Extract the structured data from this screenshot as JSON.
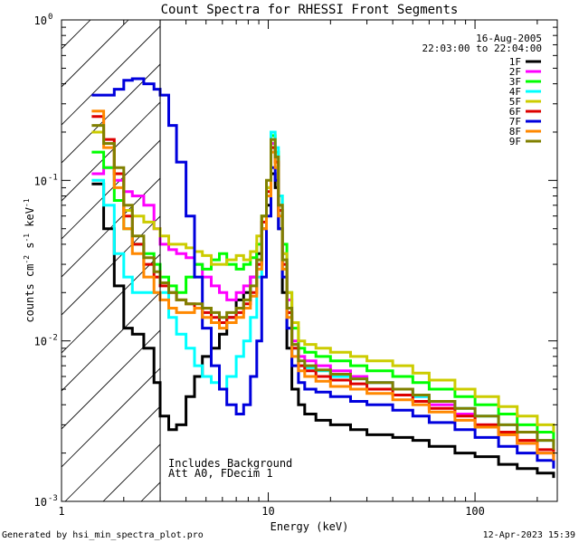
{
  "footer": {
    "generated_by": "Generated by hsi_min_spectra_plot.pro",
    "timestamp": "12-Apr-2023 15:39"
  },
  "chart_data": {
    "type": "line",
    "title": "Count Spectra for RHESSI Front Segments",
    "xlabel": "Energy (keV)",
    "ylabel_main": "counts cm",
    "ylabel_sup1": "-2",
    "ylabel_mid": " s",
    "ylabel_sup2": "-1",
    "ylabel_tail": " keV",
    "ylabel_sup3": "-1",
    "xscale": "log",
    "yscale": "log",
    "xlim": [
      1,
      250
    ],
    "ylim": [
      0.001,
      1
    ],
    "x_ticks": [
      {
        "value": 1,
        "label": "1"
      },
      {
        "value": 10,
        "label": "10"
      },
      {
        "value": 100,
        "label": "100"
      }
    ],
    "y_ticks": [
      {
        "value": 0.001,
        "base": "10",
        "exp": "-3"
      },
      {
        "value": 0.01,
        "base": "10",
        "exp": "-2"
      },
      {
        "value": 0.1,
        "base": "10",
        "exp": "-1"
      },
      {
        "value": 1,
        "base": "10",
        "exp": "0"
      }
    ],
    "date": "16-Aug-2005",
    "time_range": "22:03:00 to 22:04:00",
    "notes": [
      "Includes Background",
      "Att A0, FDecim 1"
    ],
    "excluded_region_keV": [
      1,
      3
    ],
    "series": [
      {
        "name": "1F",
        "color": "#000000",
        "x": [
          1.4,
          1.6,
          1.8,
          2.0,
          2.2,
          2.5,
          2.8,
          3.0,
          3.3,
          3.6,
          4.0,
          4.4,
          4.8,
          5.3,
          5.8,
          6.3,
          7.0,
          7.6,
          8.2,
          8.8,
          9.3,
          9.8,
          10.3,
          10.8,
          11.2,
          11.7,
          12.3,
          13.0,
          14.0,
          15.0,
          17.0,
          20.0,
          25.0,
          30.0,
          40.0,
          50.0,
          60.0,
          80.0,
          100.0,
          130.0,
          160.0,
          200.0,
          240.0
        ],
        "y": [
          0.095,
          0.05,
          0.022,
          0.012,
          0.011,
          0.009,
          0.0055,
          0.0034,
          0.0028,
          0.003,
          0.0045,
          0.006,
          0.008,
          0.009,
          0.011,
          0.014,
          0.018,
          0.02,
          0.025,
          0.035,
          0.05,
          0.07,
          0.11,
          0.09,
          0.05,
          0.02,
          0.009,
          0.005,
          0.004,
          0.0035,
          0.0032,
          0.003,
          0.0028,
          0.0026,
          0.0025,
          0.0024,
          0.0022,
          0.002,
          0.0019,
          0.0017,
          0.0016,
          0.0015,
          0.0014
        ]
      },
      {
        "name": "2F",
        "color": "#ff00ff",
        "x": [
          1.4,
          1.6,
          1.8,
          2.0,
          2.2,
          2.5,
          2.8,
          3.0,
          3.3,
          3.6,
          4.0,
          4.4,
          4.8,
          5.3,
          5.8,
          6.3,
          7.0,
          7.6,
          8.2,
          8.8,
          9.3,
          9.8,
          10.3,
          10.8,
          11.2,
          11.7,
          12.3,
          13.0,
          14.0,
          15.0,
          17.0,
          20.0,
          25.0,
          30.0,
          40.0,
          50.0,
          60.0,
          80.0,
          100.0,
          130.0,
          160.0,
          200.0,
          240.0
        ],
        "y": [
          0.11,
          0.12,
          0.1,
          0.085,
          0.08,
          0.07,
          0.05,
          0.04,
          0.037,
          0.035,
          0.033,
          0.03,
          0.025,
          0.022,
          0.02,
          0.018,
          0.02,
          0.022,
          0.025,
          0.03,
          0.05,
          0.08,
          0.17,
          0.14,
          0.07,
          0.035,
          0.018,
          0.01,
          0.008,
          0.0075,
          0.007,
          0.0065,
          0.006,
          0.0055,
          0.005,
          0.0045,
          0.004,
          0.0035,
          0.003,
          0.0026,
          0.0023,
          0.002,
          0.0018
        ]
      },
      {
        "name": "3F",
        "color": "#00ff00",
        "x": [
          1.4,
          1.6,
          1.8,
          2.0,
          2.2,
          2.5,
          2.8,
          3.0,
          3.3,
          3.6,
          4.0,
          4.4,
          4.8,
          5.3,
          5.8,
          6.3,
          7.0,
          7.6,
          8.2,
          8.8,
          9.3,
          9.8,
          10.3,
          10.8,
          11.2,
          11.7,
          12.3,
          13.0,
          14.0,
          15.0,
          17.0,
          20.0,
          25.0,
          30.0,
          40.0,
          50.0,
          60.0,
          80.0,
          100.0,
          130.0,
          160.0,
          200.0,
          240.0
        ],
        "y": [
          0.15,
          0.12,
          0.075,
          0.05,
          0.04,
          0.035,
          0.03,
          0.025,
          0.022,
          0.02,
          0.025,
          0.03,
          0.028,
          0.032,
          0.035,
          0.03,
          0.028,
          0.03,
          0.033,
          0.04,
          0.06,
          0.09,
          0.19,
          0.15,
          0.08,
          0.04,
          0.02,
          0.012,
          0.009,
          0.0085,
          0.008,
          0.0075,
          0.007,
          0.0065,
          0.006,
          0.0055,
          0.005,
          0.0045,
          0.004,
          0.0035,
          0.003,
          0.0027,
          0.0024
        ]
      },
      {
        "name": "4F",
        "color": "#00ffff",
        "x": [
          1.4,
          1.6,
          1.8,
          2.0,
          2.2,
          2.5,
          2.8,
          3.0,
          3.3,
          3.6,
          4.0,
          4.4,
          4.8,
          5.3,
          5.8,
          6.3,
          7.0,
          7.6,
          8.2,
          8.8,
          9.3,
          9.8,
          10.3,
          10.8,
          11.2,
          11.7,
          12.3,
          13.0,
          14.0,
          15.0,
          17.0,
          20.0,
          25.0,
          30.0,
          40.0,
          50.0,
          60.0,
          80.0,
          100.0,
          130.0,
          160.0,
          200.0,
          240.0
        ],
        "y": [
          0.1,
          0.07,
          0.035,
          0.025,
          0.02,
          0.02,
          0.02,
          0.02,
          0.014,
          0.011,
          0.009,
          0.007,
          0.006,
          0.0055,
          0.005,
          0.006,
          0.008,
          0.01,
          0.014,
          0.025,
          0.05,
          0.09,
          0.2,
          0.16,
          0.08,
          0.035,
          0.015,
          0.009,
          0.007,
          0.0068,
          0.0065,
          0.006,
          0.0058,
          0.0055,
          0.005,
          0.0045,
          0.0042,
          0.0038,
          0.0034,
          0.003,
          0.0027,
          0.0024,
          0.0022
        ]
      },
      {
        "name": "5F",
        "color": "#cccc00",
        "x": [
          1.4,
          1.6,
          1.8,
          2.0,
          2.2,
          2.5,
          2.8,
          3.0,
          3.3,
          3.6,
          4.0,
          4.4,
          4.8,
          5.3,
          5.8,
          6.3,
          7.0,
          7.6,
          8.2,
          8.8,
          9.3,
          9.8,
          10.3,
          10.8,
          11.2,
          11.7,
          12.3,
          13.0,
          14.0,
          15.0,
          17.0,
          20.0,
          25.0,
          30.0,
          40.0,
          50.0,
          60.0,
          80.0,
          100.0,
          130.0,
          160.0,
          200.0,
          240.0
        ],
        "y": [
          0.2,
          0.17,
          0.11,
          0.065,
          0.06,
          0.055,
          0.05,
          0.045,
          0.04,
          0.04,
          0.038,
          0.036,
          0.034,
          0.03,
          0.03,
          0.032,
          0.034,
          0.032,
          0.036,
          0.045,
          0.06,
          0.09,
          0.16,
          0.13,
          0.07,
          0.035,
          0.02,
          0.013,
          0.01,
          0.0095,
          0.009,
          0.0085,
          0.008,
          0.0075,
          0.007,
          0.0063,
          0.0057,
          0.005,
          0.0045,
          0.0039,
          0.0034,
          0.003,
          0.0027
        ]
      },
      {
        "name": "6F",
        "color": "#dd0000",
        "x": [
          1.4,
          1.6,
          1.8,
          2.0,
          2.2,
          2.5,
          2.8,
          3.0,
          3.3,
          3.6,
          4.0,
          4.4,
          4.8,
          5.3,
          5.8,
          6.3,
          7.0,
          7.6,
          8.2,
          8.8,
          9.3,
          9.8,
          10.3,
          10.8,
          11.2,
          11.7,
          12.3,
          13.0,
          14.0,
          15.0,
          17.0,
          20.0,
          25.0,
          30.0,
          40.0,
          50.0,
          60.0,
          80.0,
          100.0,
          130.0,
          160.0,
          200.0,
          240.0
        ],
        "y": [
          0.25,
          0.18,
          0.11,
          0.06,
          0.04,
          0.03,
          0.025,
          0.022,
          0.02,
          0.018,
          0.017,
          0.016,
          0.015,
          0.014,
          0.013,
          0.014,
          0.015,
          0.017,
          0.02,
          0.03,
          0.055,
          0.085,
          0.16,
          0.13,
          0.065,
          0.03,
          0.015,
          0.009,
          0.007,
          0.0065,
          0.006,
          0.0057,
          0.0054,
          0.005,
          0.0046,
          0.0042,
          0.0038,
          0.0034,
          0.003,
          0.0027,
          0.0024,
          0.0021,
          0.0019
        ]
      },
      {
        "name": "7F",
        "color": "#0000dd",
        "x": [
          1.4,
          1.6,
          1.8,
          2.0,
          2.2,
          2.5,
          2.8,
          3.0,
          3.3,
          3.6,
          4.0,
          4.4,
          4.8,
          5.3,
          5.8,
          6.3,
          7.0,
          7.6,
          8.2,
          8.8,
          9.3,
          9.8,
          10.3,
          10.8,
          11.2,
          11.7,
          12.3,
          13.0,
          14.0,
          15.0,
          17.0,
          20.0,
          25.0,
          30.0,
          40.0,
          50.0,
          60.0,
          80.0,
          100.0,
          130.0,
          160.0,
          200.0,
          240.0
        ],
        "y": [
          0.34,
          0.34,
          0.37,
          0.42,
          0.43,
          0.4,
          0.37,
          0.34,
          0.22,
          0.13,
          0.06,
          0.025,
          0.012,
          0.007,
          0.005,
          0.004,
          0.0035,
          0.004,
          0.006,
          0.01,
          0.025,
          0.06,
          0.12,
          0.1,
          0.05,
          0.025,
          0.012,
          0.007,
          0.0055,
          0.005,
          0.0048,
          0.0045,
          0.0042,
          0.004,
          0.0037,
          0.0034,
          0.0031,
          0.0028,
          0.0025,
          0.0022,
          0.002,
          0.0018,
          0.0016
        ]
      },
      {
        "name": "8F",
        "color": "#ff8800",
        "x": [
          1.4,
          1.6,
          1.8,
          2.0,
          2.2,
          2.5,
          2.8,
          3.0,
          3.3,
          3.6,
          4.0,
          4.4,
          4.8,
          5.3,
          5.8,
          6.3,
          7.0,
          7.6,
          8.2,
          8.8,
          9.3,
          9.8,
          10.3,
          10.8,
          11.2,
          11.7,
          12.3,
          13.0,
          14.0,
          15.0,
          17.0,
          20.0,
          25.0,
          30.0,
          40.0,
          50.0,
          60.0,
          80.0,
          100.0,
          130.0,
          160.0,
          200.0,
          240.0
        ],
        "y": [
          0.27,
          0.16,
          0.09,
          0.05,
          0.035,
          0.025,
          0.02,
          0.018,
          0.016,
          0.015,
          0.015,
          0.016,
          0.014,
          0.013,
          0.012,
          0.013,
          0.014,
          0.016,
          0.019,
          0.028,
          0.05,
          0.08,
          0.15,
          0.12,
          0.06,
          0.028,
          0.014,
          0.008,
          0.0065,
          0.006,
          0.0056,
          0.0052,
          0.005,
          0.0047,
          0.0043,
          0.004,
          0.0036,
          0.0032,
          0.0029,
          0.0026,
          0.0023,
          0.002,
          0.0018
        ]
      },
      {
        "name": "9F",
        "color": "#808000",
        "x": [
          1.4,
          1.6,
          1.8,
          2.0,
          2.2,
          2.5,
          2.8,
          3.0,
          3.3,
          3.6,
          4.0,
          4.4,
          4.8,
          5.3,
          5.8,
          6.3,
          7.0,
          7.6,
          8.2,
          8.8,
          9.3,
          9.8,
          10.3,
          10.8,
          11.2,
          11.7,
          12.3,
          13.0,
          14.0,
          15.0,
          17.0,
          20.0,
          25.0,
          30.0,
          40.0,
          50.0,
          60.0,
          80.0,
          100.0,
          130.0,
          160.0,
          200.0,
          240.0
        ],
        "y": [
          0.22,
          0.17,
          0.12,
          0.07,
          0.045,
          0.033,
          0.027,
          0.023,
          0.02,
          0.018,
          0.017,
          0.017,
          0.016,
          0.015,
          0.014,
          0.015,
          0.016,
          0.018,
          0.022,
          0.032,
          0.06,
          0.1,
          0.18,
          0.14,
          0.07,
          0.032,
          0.016,
          0.0095,
          0.0075,
          0.007,
          0.0066,
          0.0062,
          0.0058,
          0.0055,
          0.005,
          0.0046,
          0.0042,
          0.0038,
          0.0034,
          0.003,
          0.0027,
          0.0024,
          0.0021
        ]
      }
    ]
  }
}
